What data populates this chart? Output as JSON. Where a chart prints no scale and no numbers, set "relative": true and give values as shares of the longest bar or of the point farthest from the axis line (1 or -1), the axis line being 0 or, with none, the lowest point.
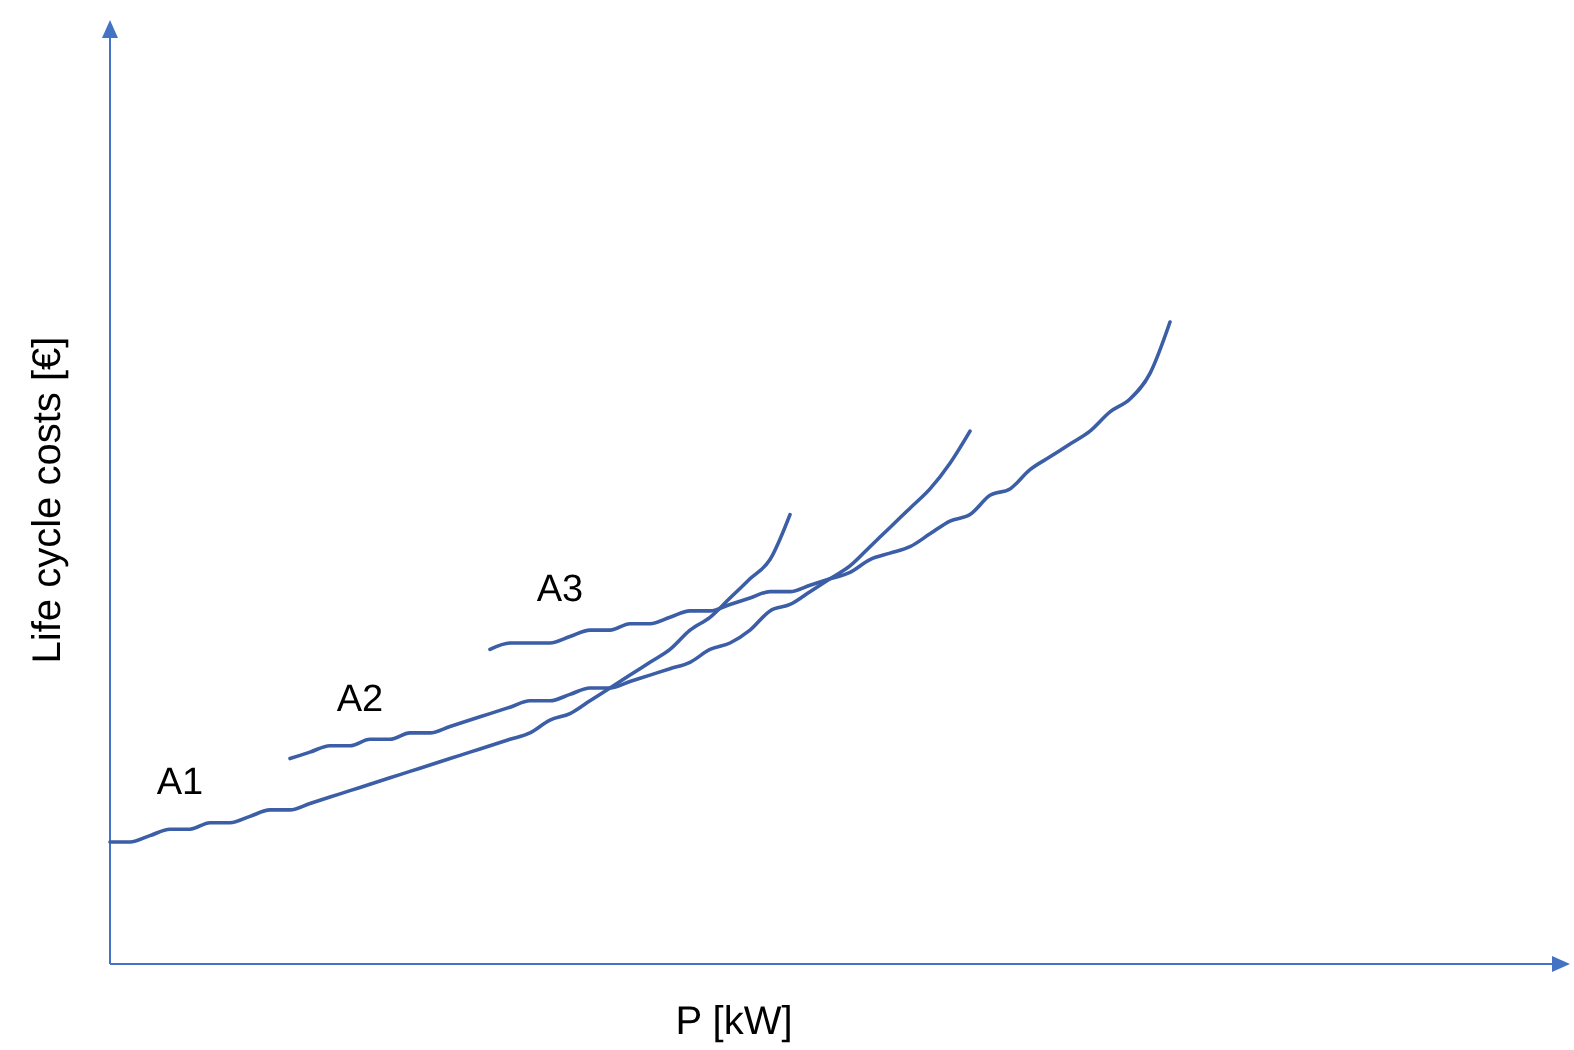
{
  "chart_data": {
    "type": "line",
    "xlabel": "P [kW]",
    "ylabel": "Life cycle costs [€]",
    "relative": true,
    "categories": [
      null,
      null,
      null,
      null,
      null,
      null,
      null,
      null,
      null,
      null,
      null,
      null,
      null,
      null,
      null,
      null,
      null,
      null,
      null,
      null,
      null,
      null,
      null,
      null,
      null,
      null,
      null,
      null,
      null,
      null,
      null,
      null,
      null,
      null,
      null,
      null,
      null,
      null,
      null,
      null,
      null,
      null,
      null,
      null,
      null,
      null,
      null,
      null,
      null,
      null,
      null,
      null,
      null,
      null,
      null,
      null,
      null,
      null,
      null,
      null,
      null,
      null,
      null,
      null,
      null,
      null,
      null,
      null,
      null,
      null,
      null,
      null,
      null,
      null
    ],
    "series": [
      {
        "name": "A1",
        "color": "#3b5ea6",
        "values": [
          0.19,
          0.19,
          0.2,
          0.21,
          0.21,
          0.22,
          0.22,
          0.23,
          0.24,
          0.24,
          0.25,
          0.26,
          0.27,
          0.28,
          0.29,
          0.3,
          0.31,
          0.32,
          0.33,
          0.34,
          0.35,
          0.36,
          0.38,
          0.39,
          0.41,
          0.43,
          0.45,
          0.47,
          0.49,
          0.52,
          0.54,
          0.57,
          0.6,
          0.63,
          0.7,
          null,
          null,
          null,
          null,
          null,
          null,
          null,
          null,
          null,
          null,
          null,
          null,
          null,
          null,
          null,
          null,
          null,
          null,
          null,
          null,
          null,
          null,
          null,
          null,
          null,
          null,
          null,
          null,
          null,
          null,
          null,
          null,
          null,
          null,
          null,
          null,
          null,
          null,
          null
        ]
      },
      {
        "name": "A2",
        "color": "#3b5ea6",
        "values": [
          null,
          null,
          null,
          null,
          null,
          null,
          null,
          null,
          null,
          0.32,
          0.33,
          0.34,
          0.34,
          0.35,
          0.35,
          0.36,
          0.36,
          0.37,
          0.38,
          0.39,
          0.4,
          0.41,
          0.41,
          0.42,
          0.43,
          0.43,
          0.44,
          0.45,
          0.46,
          0.47,
          0.49,
          0.5,
          0.52,
          0.55,
          0.56,
          0.58,
          0.6,
          0.62,
          0.65,
          0.68,
          0.71,
          0.74,
          0.78,
          0.83,
          null,
          null,
          null,
          null,
          null,
          null,
          null,
          null,
          null,
          null,
          null,
          null,
          null,
          null,
          null,
          null,
          null,
          null,
          null,
          null,
          null,
          null,
          null,
          null,
          null,
          null,
          null,
          null,
          null,
          null
        ]
      },
      {
        "name": "A3",
        "color": "#3b5ea6",
        "values": [
          null,
          null,
          null,
          null,
          null,
          null,
          null,
          null,
          null,
          null,
          null,
          null,
          null,
          null,
          null,
          null,
          null,
          null,
          null,
          0.49,
          0.5,
          0.5,
          0.5,
          0.51,
          0.52,
          0.52,
          0.53,
          0.53,
          0.54,
          0.55,
          0.55,
          0.56,
          0.57,
          0.58,
          0.58,
          0.59,
          0.6,
          0.61,
          0.63,
          0.64,
          0.65,
          0.67,
          0.69,
          0.7,
          0.73,
          0.74,
          0.77,
          0.79,
          0.81,
          0.83,
          0.86,
          0.88,
          0.92,
          1,
          null,
          null,
          null,
          null,
          null,
          null,
          null,
          null,
          null,
          null,
          null,
          null,
          null,
          null,
          null,
          null,
          null,
          null,
          null,
          null
        ]
      }
    ]
  }
}
